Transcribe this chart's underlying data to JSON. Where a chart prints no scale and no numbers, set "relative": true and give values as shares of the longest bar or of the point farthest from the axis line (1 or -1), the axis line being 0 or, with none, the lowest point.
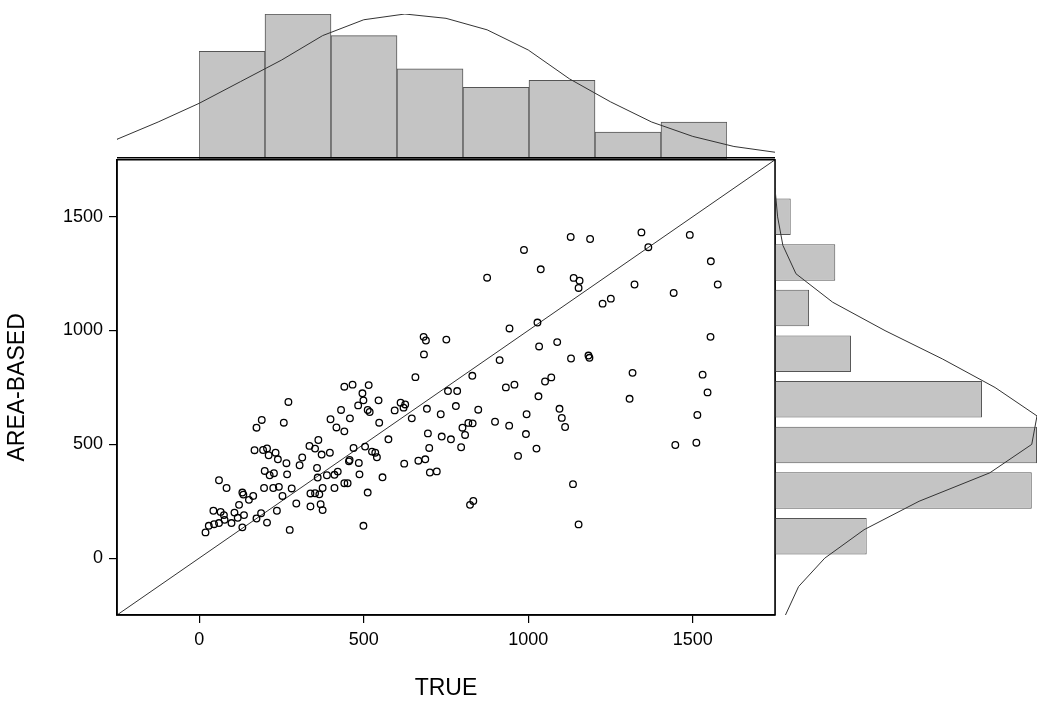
{
  "chart_data": [
    {
      "type": "scatter",
      "xlabel": "TRUE",
      "ylabel": "AREA-BASED",
      "xlim": [
        -250,
        1750
      ],
      "ylim": [
        -250,
        1750
      ],
      "xticks": [
        0,
        500,
        1000,
        1500
      ],
      "yticks": [
        0,
        500,
        1000,
        1500
      ],
      "marker": "circle",
      "grid": false,
      "series": [
        {
          "type": "scatter",
          "color": "#000000",
          "x": [
            19,
            29,
            45,
            60,
            43,
            65,
            75,
            77,
            98,
            107,
            117,
            121,
            131,
            131,
            134,
            136,
            151,
            164,
            174,
            188,
            206,
            60,
            83,
            168,
            174,
            190,
            194,
            206,
            211,
            232,
            239,
            199,
            214,
            227,
            267,
            265,
            257,
            271,
            197,
            225,
            242,
            253,
            281,
            236,
            275,
            295,
            305,
            313,
            335,
            352,
            362,
            372,
            397,
            358,
            360,
            338,
            352,
            365,
            375,
            338,
            369,
            375,
            388,
            411,
            421,
            411,
            441,
            451,
            455,
            457,
            469,
            485,
            487,
            399,
            417,
            441,
            431,
            458,
            483,
            441,
            466,
            515,
            496,
            499,
            545,
            512,
            518,
            547,
            575,
            504,
            525,
            535,
            540,
            512,
            557,
            499,
            594,
            612,
            626,
            621,
            646,
            657,
            623,
            666,
            687,
            695,
            699,
            701,
            722,
            682,
            689,
            683,
            751,
            692,
            734,
            737,
            765,
            780,
            756,
            784,
            796,
            808,
            800,
            818,
            831,
            848,
            830,
            823,
            833,
            875,
            899,
            913,
            932,
            943,
            958,
            942,
            993,
            995,
            969,
            987,
            1025,
            1031,
            1033,
            1028,
            1038,
            1051,
            1070,
            1088,
            1095,
            1102,
            1112,
            1130,
            1129,
            1138,
            1156,
            1153,
            1136,
            1153,
            1188,
            1344,
            1365,
            1491,
            1555,
            1576,
            1323,
            1442,
            1226,
            1251,
            1554,
            1183,
            1186,
            1317,
            1530,
            1545,
            1308,
            1514,
            1447,
            1511
          ],
          "values": [
            113,
            142,
            149,
            154,
            208,
            203,
            189,
            168,
            154,
            200,
            177,
            234,
            135,
            288,
            279,
            189,
            256,
            273,
            174,
            197,
            156,
            342,
            308,
            474,
            573,
            607,
            475,
            482,
            452,
            463,
            434,
            383,
            364,
            373,
            368,
            417,
            595,
            686,
            308,
            308,
            313,
            273,
            306,
            208,
            124,
            240,
            408,
            442,
            493,
            481,
            519,
            455,
            463,
            396,
            354,
            284,
            285,
            280,
            308,
            227,
            237,
            211,
            364,
            366,
            380,
            308,
            329,
            329,
            425,
            431,
            484,
            418,
            368,
            610,
            574,
            557,
            651,
            614,
            671,
            753,
            762,
            760,
            724,
            693,
            693,
            651,
            642,
            595,
            522,
            490,
            468,
            463,
            443,
            288,
            355,
            142,
            649,
            683,
            675,
            661,
            614,
            795,
            415,
            428,
            434,
            548,
            484,
            376,
            381,
            972,
            956,
            895,
            960,
            656,
            632,
            534,
            522,
            668,
            734,
            734,
            487,
            541,
            573,
            594,
            592,
            652,
            801,
            234,
            251,
            1232,
            599,
            870,
            750,
            1009,
            762,
            582,
            545,
            632,
            449,
            1354,
            481,
            711,
            930,
            1035,
            1269,
            776,
            794,
            949,
            656,
            616,
            576,
            877,
            1411,
            1231,
            1219,
            1187,
            325,
            148,
            1402,
            1431,
            1366,
            1420,
            1304,
            1202,
            1202,
            1165,
            1118,
            1140,
            972,
            890,
            880,
            814,
            806,
            728,
            700,
            629,
            497,
            507
          ]
        },
        {
          "type": "line",
          "color": "#333333",
          "marker": "none",
          "x": [
            -250,
            1750
          ],
          "values": [
            -250,
            1750
          ]
        }
      ]
    },
    {
      "type": "bar",
      "relative": true,
      "categories": [
        null,
        null,
        null,
        null,
        null,
        null,
        null,
        null
      ],
      "color": "#c4c4c4",
      "values": [
        0.74,
        1,
        0.85,
        0.62,
        0.49,
        0.54,
        0.18,
        0.25
      ]
    },
    {
      "type": "line",
      "relative": true,
      "marker": "none",
      "categories": [
        null,
        null,
        null,
        null,
        null,
        null,
        null,
        null,
        null,
        null,
        null,
        null,
        null,
        null,
        null,
        null,
        null
      ],
      "color": "#333333",
      "values": [
        0.13,
        0.25,
        0.38,
        0.53,
        0.68,
        0.85,
        0.96,
        1,
        0.97,
        0.89,
        0.75,
        0.55,
        0.39,
        0.25,
        0.15,
        0.08,
        0.04
      ]
    },
    {
      "type": "bar",
      "relative": true,
      "orientation": "horizontal",
      "categories": [
        null,
        null,
        null,
        null,
        null,
        null,
        null,
        null
      ],
      "color": "#c4c4c4",
      "values": [
        0.06,
        0.23,
        0.13,
        0.29,
        0.79,
        1,
        0.98,
        0.35
      ]
    },
    {
      "type": "line",
      "relative": true,
      "orientation": "horizontal",
      "marker": "none",
      "ylim": [
        -250,
        1750
      ],
      "yticks": [
        0,
        500,
        1000,
        1500
      ],
      "tick_labels": false,
      "x": [
        1750,
        1625,
        1500,
        1375,
        1250,
        1125,
        1000,
        875,
        750,
        625,
        500,
        375,
        250,
        125,
        0,
        -125,
        -250
      ],
      "color": "#333333",
      "values": [
        0,
        0,
        0.01,
        0.03,
        0.08,
        0.22,
        0.42,
        0.64,
        0.84,
        1,
        0.98,
        0.82,
        0.55,
        0.34,
        0.19,
        0.09,
        0.04
      ]
    }
  ]
}
